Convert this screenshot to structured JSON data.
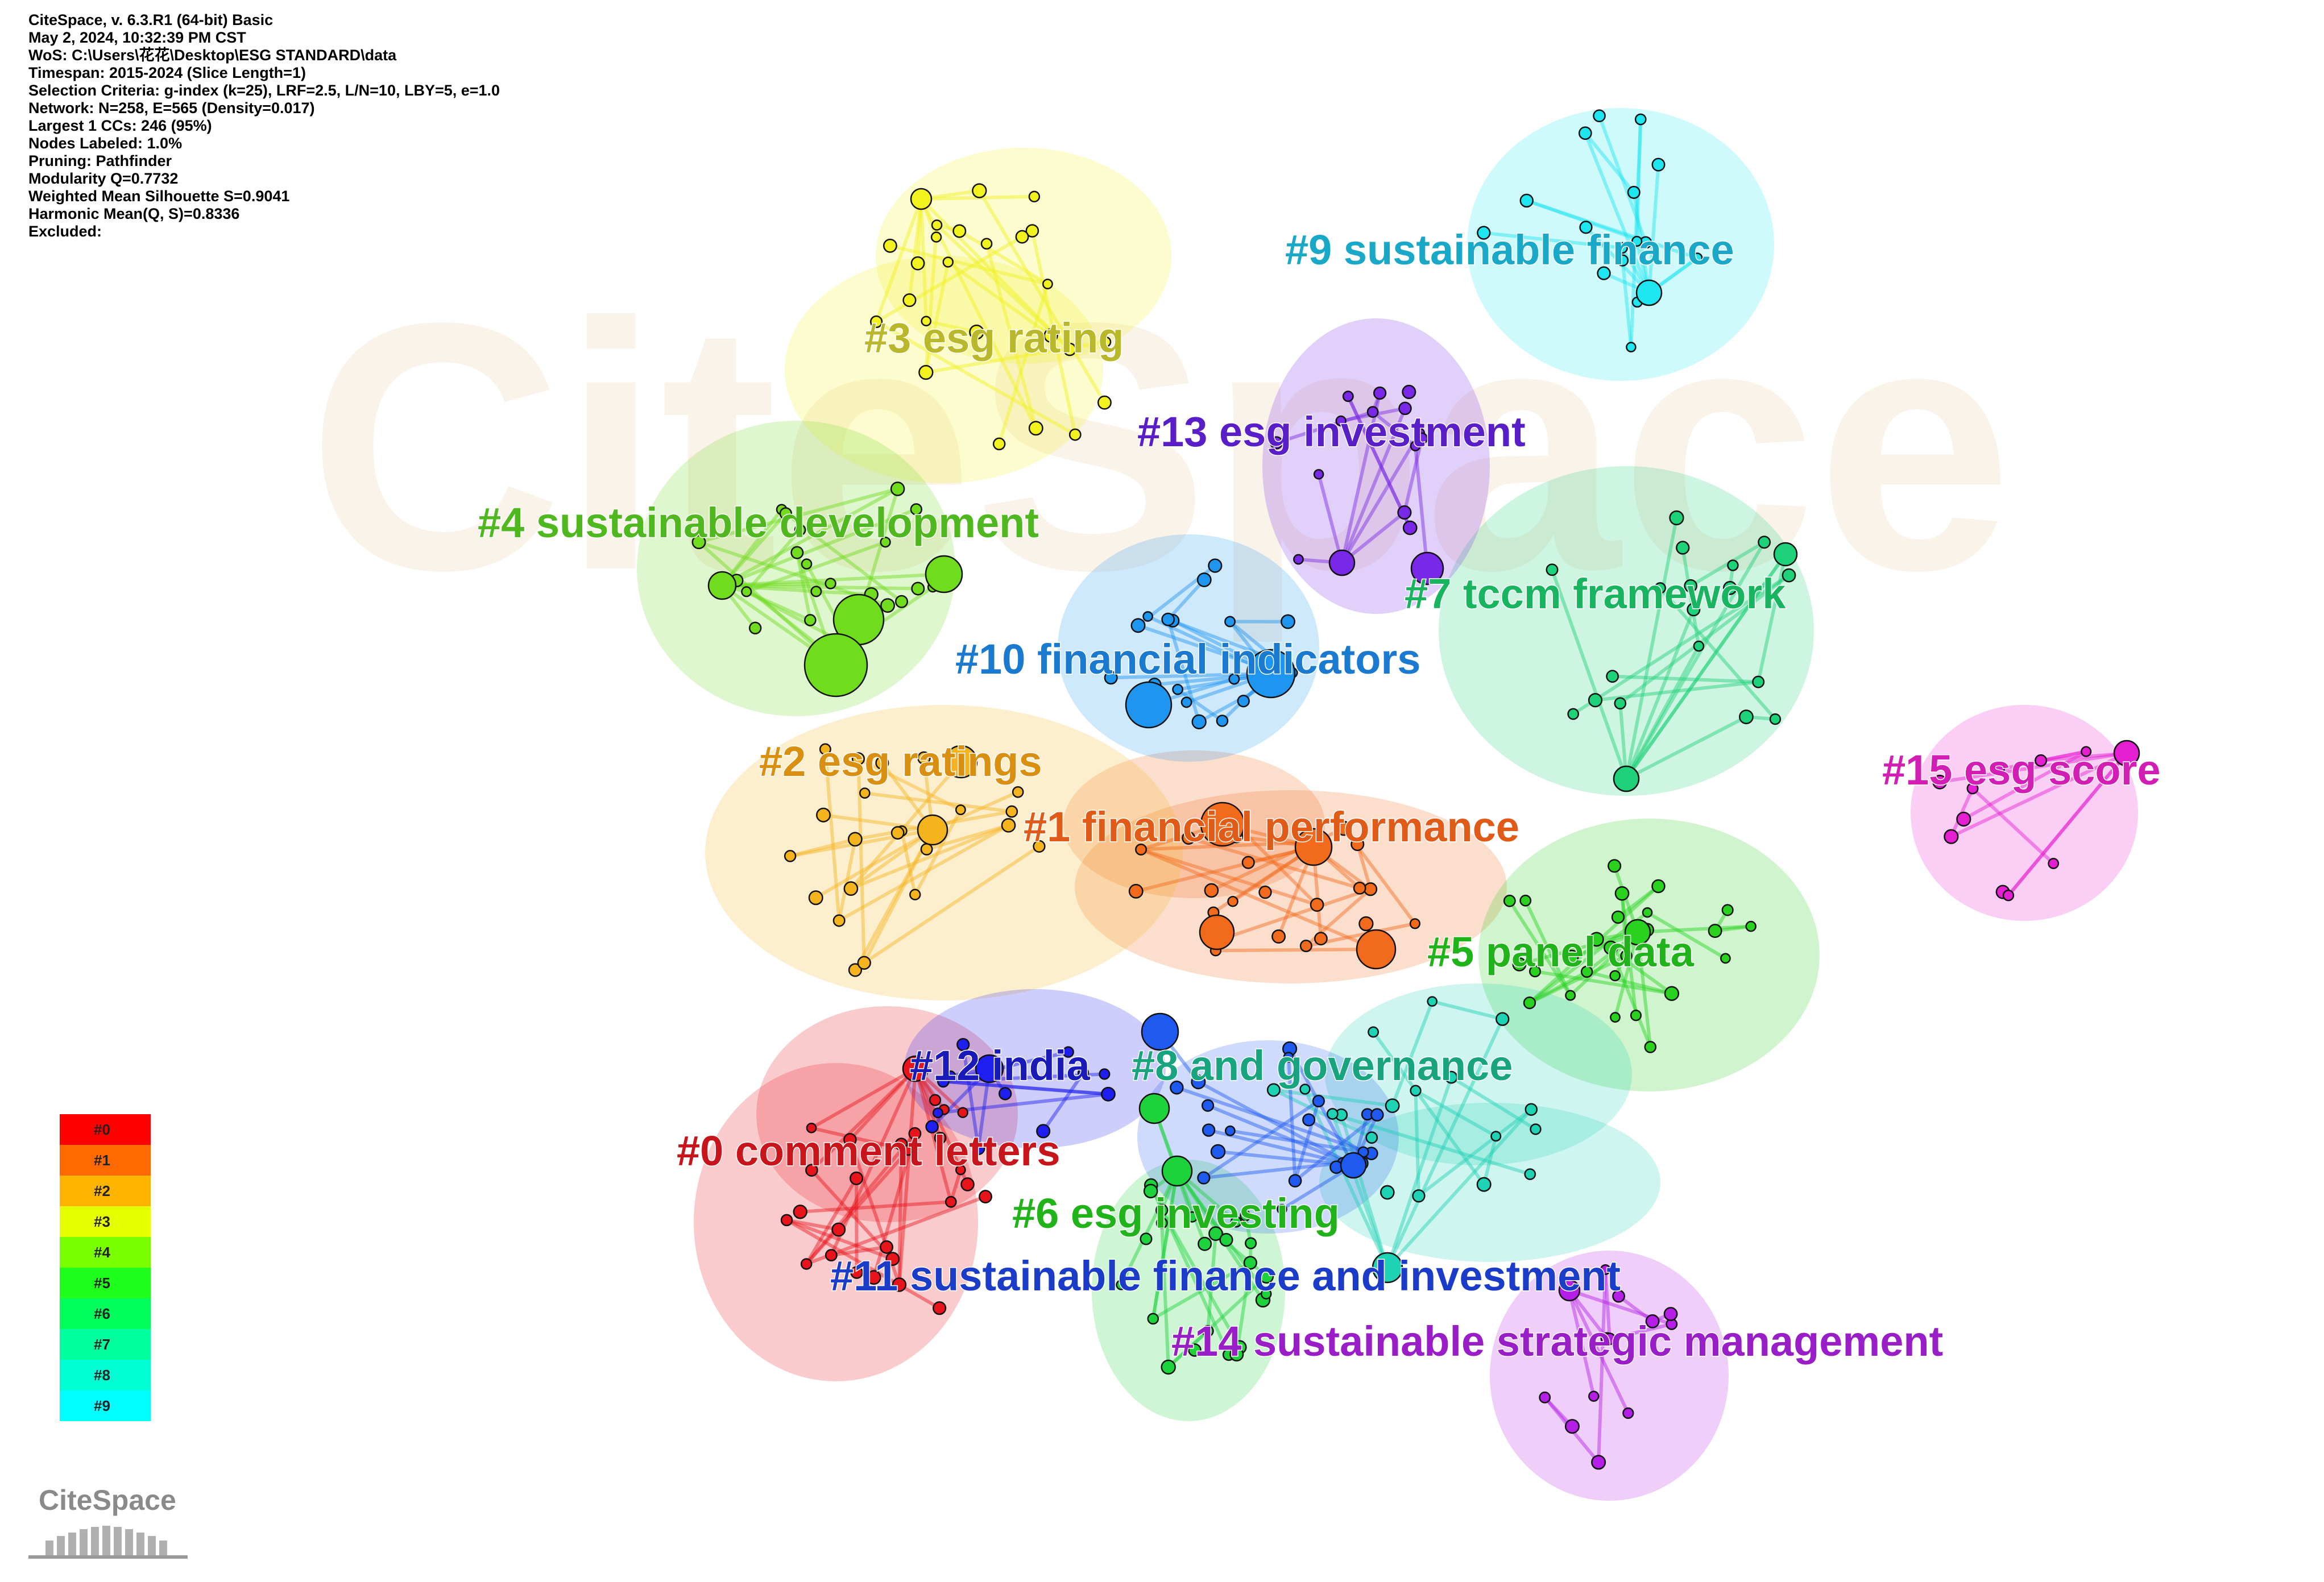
{
  "info_lines": [
    "CiteSpace, v. 6.3.R1 (64-bit) Basic",
    "May 2, 2024, 10:32:39 PM CST",
    "WoS: C:\\Users\\花花\\Desktop\\ESG STANDARD\\data",
    "Timespan: 2015-2024 (Slice Length=1)",
    "Selection Criteria: g-index (k=25), LRF=2.5, L/N=10, LBY=5, e=1.0",
    "Network: N=258, E=565 (Density=0.017)",
    "Largest 1 CCs: 246 (95%)",
    "Nodes Labeled: 1.0%",
    "Pruning: Pathfinder",
    "Modularity Q=0.7732",
    "Weighted Mean Silhouette S=0.9041",
    "Harmonic Mean(Q, S)=0.8336",
    "Excluded:"
  ],
  "clusters": [
    {
      "label": "#0 comment letters",
      "color": "#e8141b",
      "label_color": "#c8141b"
    },
    {
      "label": "#1 financial performance",
      "color": "#f26a1b",
      "label_color": "#e05a18"
    },
    {
      "label": "#2 esg ratings",
      "color": "#f5b41e",
      "label_color": "#d98f10"
    },
    {
      "label": "#3 esg rating",
      "color": "#f2f21e",
      "label_color": "#b8b82a"
    },
    {
      "label": "#4 sustainable development",
      "color": "#6fdc1e",
      "label_color": "#4fb81e"
    },
    {
      "label": "#5 panel data",
      "color": "#28d21e",
      "label_color": "#21b41a"
    },
    {
      "label": "#6 esg investing",
      "color": "#1ed23c",
      "label_color": "#21b41a"
    },
    {
      "label": "#7 tccm framework",
      "color": "#1ed27a",
      "label_color": "#18b45f"
    },
    {
      "label": "#8 and governance",
      "color": "#1ed2b4",
      "label_color": "#18a47f"
    },
    {
      "label": "#9 sustainable finance",
      "color": "#1ee6f0",
      "label_color": "#1aa8c8"
    },
    {
      "label": "#10 financial indicators",
      "color": "#1e96f0",
      "label_color": "#1a7ad0"
    },
    {
      "label": "#11 sustainable finance and investment",
      "color": "#1e5af0",
      "label_color": "#1a3cc8"
    },
    {
      "label": "#12 india",
      "color": "#1e1ef0",
      "label_color": "#1a1ab8"
    },
    {
      "label": "#13 esg investment",
      "color": "#7828e6",
      "label_color": "#5a1ec8"
    },
    {
      "label": "#14 sustainable strategic management",
      "color": "#b41ee6",
      "label_color": "#9a1ec8"
    },
    {
      "label": "#15 esg score",
      "color": "#e61ed2",
      "label_color": "#d21eb4"
    }
  ],
  "legend": [
    "#0",
    "#1",
    "#2",
    "#3",
    "#4",
    "#5",
    "#6",
    "#7",
    "#8",
    "#9"
  ],
  "legend_colors": [
    "#ff0000",
    "#ff6a00",
    "#ffb400",
    "#e6ff00",
    "#7aff00",
    "#1eff1e",
    "#00ff5a",
    "#00ff9e",
    "#00ffd2",
    "#00ffff"
  ],
  "logo_text": "CiteSpace",
  "watermark_text": "CiteSpace"
}
